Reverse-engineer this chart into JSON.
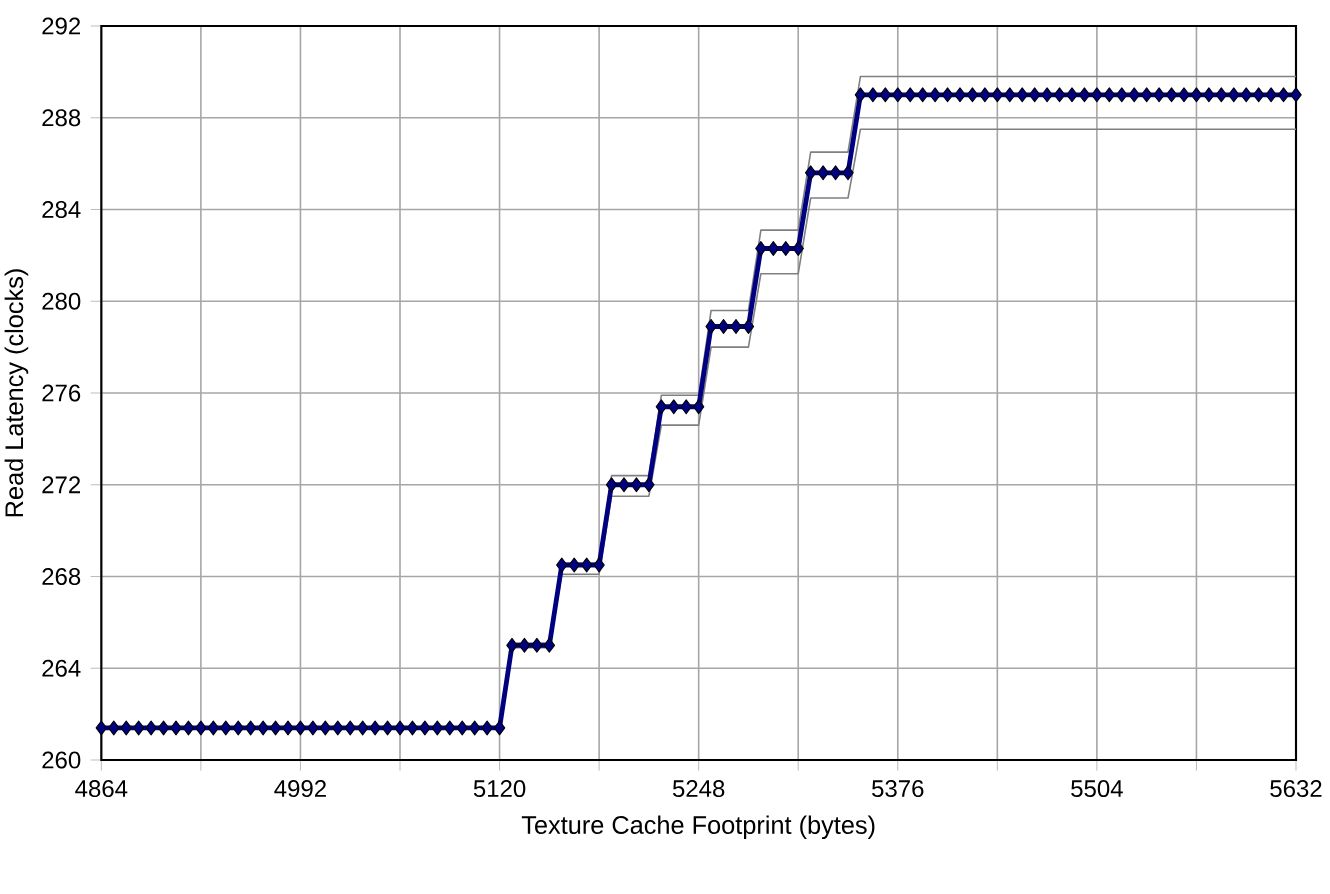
{
  "chart_data": {
    "type": "line",
    "xlabel": "Texture Cache Footprint (bytes)",
    "ylabel": "Read Latency (clocks)",
    "x": [
      4864,
      4872,
      4880,
      4888,
      4896,
      4904,
      4912,
      4920,
      4928,
      4936,
      4944,
      4952,
      4960,
      4968,
      4976,
      4984,
      4992,
      5000,
      5008,
      5016,
      5024,
      5032,
      5040,
      5048,
      5056,
      5064,
      5072,
      5080,
      5088,
      5096,
      5104,
      5112,
      5120,
      5128,
      5136,
      5144,
      5152,
      5160,
      5168,
      5176,
      5184,
      5192,
      5200,
      5208,
      5216,
      5224,
      5232,
      5240,
      5248,
      5256,
      5264,
      5272,
      5280,
      5288,
      5296,
      5304,
      5312,
      5320,
      5328,
      5336,
      5344,
      5352,
      5360,
      5368,
      5376,
      5384,
      5392,
      5400,
      5408,
      5416,
      5424,
      5432,
      5440,
      5448,
      5456,
      5464,
      5472,
      5480,
      5488,
      5496,
      5504,
      5512,
      5520,
      5528,
      5536,
      5544,
      5552,
      5560,
      5568,
      5576,
      5584,
      5592,
      5600,
      5608,
      5616,
      5624,
      5632
    ],
    "series": [
      {
        "color": "#808080",
        "marker": "none",
        "values": [
          261.4,
          261.4,
          261.4,
          261.4,
          261.4,
          261.4,
          261.4,
          261.4,
          261.4,
          261.4,
          261.4,
          261.4,
          261.4,
          261.4,
          261.4,
          261.4,
          261.4,
          261.4,
          261.4,
          261.4,
          261.4,
          261.4,
          261.4,
          261.4,
          261.4,
          261.4,
          261.4,
          261.4,
          261.4,
          261.4,
          261.4,
          261.4,
          261.4,
          264.9,
          264.9,
          264.9,
          264.9,
          268.1,
          268.1,
          268.1,
          268.1,
          271.5,
          271.5,
          271.5,
          271.5,
          274.6,
          274.6,
          274.6,
          274.6,
          278.0,
          278.0,
          278.0,
          278.0,
          281.2,
          281.2,
          281.2,
          281.2,
          284.5,
          284.5,
          284.5,
          284.5,
          287.5,
          287.5,
          287.5,
          287.5,
          287.5,
          287.5,
          287.5,
          287.5,
          287.5,
          287.5,
          287.5,
          287.5,
          287.5,
          287.5,
          287.5,
          287.5,
          287.5,
          287.5,
          287.5,
          287.5,
          287.5,
          287.5,
          287.5,
          287.5,
          287.5,
          287.5,
          287.5,
          287.5,
          287.5,
          287.5,
          287.5,
          287.5,
          287.5,
          287.5,
          287.5,
          287.5
        ]
      },
      {
        "color": "#808080",
        "marker": "none",
        "values": [
          261.4,
          261.4,
          261.4,
          261.4,
          261.4,
          261.4,
          261.4,
          261.4,
          261.4,
          261.4,
          261.4,
          261.4,
          261.4,
          261.4,
          261.4,
          261.4,
          261.4,
          261.4,
          261.4,
          261.4,
          261.4,
          261.4,
          261.4,
          261.4,
          261.4,
          261.4,
          261.4,
          261.4,
          261.4,
          261.4,
          261.4,
          261.4,
          261.4,
          265.1,
          265.1,
          265.1,
          265.1,
          268.6,
          268.6,
          268.6,
          268.6,
          272.4,
          272.4,
          272.4,
          272.4,
          275.9,
          275.9,
          275.9,
          275.9,
          279.6,
          279.6,
          279.6,
          279.6,
          283.1,
          283.1,
          283.1,
          283.1,
          286.5,
          286.5,
          286.5,
          286.5,
          289.8,
          289.8,
          289.8,
          289.8,
          289.8,
          289.8,
          289.8,
          289.8,
          289.8,
          289.8,
          289.8,
          289.8,
          289.8,
          289.8,
          289.8,
          289.8,
          289.8,
          289.8,
          289.8,
          289.8,
          289.8,
          289.8,
          289.8,
          289.8,
          289.8,
          289.8,
          289.8,
          289.8,
          289.8,
          289.8,
          289.8,
          289.8,
          289.8,
          289.8,
          289.8,
          289.8
        ]
      },
      {
        "color": "#000080",
        "values": [
          261.4,
          261.4,
          261.4,
          261.4,
          261.4,
          261.4,
          261.4,
          261.4,
          261.4,
          261.4,
          261.4,
          261.4,
          261.4,
          261.4,
          261.4,
          261.4,
          261.4,
          261.4,
          261.4,
          261.4,
          261.4,
          261.4,
          261.4,
          261.4,
          261.4,
          261.4,
          261.4,
          261.4,
          261.4,
          261.4,
          261.4,
          261.4,
          261.4,
          265.0,
          265.0,
          265.0,
          265.0,
          268.5,
          268.5,
          268.5,
          268.5,
          272.0,
          272.0,
          272.0,
          272.0,
          275.4,
          275.4,
          275.4,
          275.4,
          278.9,
          278.9,
          278.9,
          278.9,
          282.3,
          282.3,
          282.3,
          282.3,
          285.6,
          285.6,
          285.6,
          285.6,
          289.0,
          289.0,
          289.0,
          289.0,
          289.0,
          289.0,
          289.0,
          289.0,
          289.0,
          289.0,
          289.0,
          289.0,
          289.0,
          289.0,
          289.0,
          289.0,
          289.0,
          289.0,
          289.0,
          289.0,
          289.0,
          289.0,
          289.0,
          289.0,
          289.0,
          289.0,
          289.0,
          289.0,
          289.0,
          289.0,
          289.0,
          289.0,
          289.0,
          289.0,
          289.0,
          289.0
        ]
      }
    ],
    "xlim": [
      4864,
      5632
    ],
    "xticks": [
      4864,
      {
        "value": 4928,
        "label": null
      },
      4992,
      {
        "value": 5056,
        "label": null
      },
      5120,
      {
        "value": 5184,
        "label": null
      },
      5248,
      {
        "value": 5312,
        "label": null
      },
      5376,
      {
        "value": 5440,
        "label": null
      },
      5504,
      {
        "value": 5568,
        "label": null
      },
      5632
    ],
    "ylim": [
      260,
      292
    ],
    "yticks": [
      260,
      264,
      268,
      272,
      276,
      280,
      284,
      288,
      292
    ],
    "grid": true,
    "marker": "diamond",
    "line_style": "solid"
  }
}
